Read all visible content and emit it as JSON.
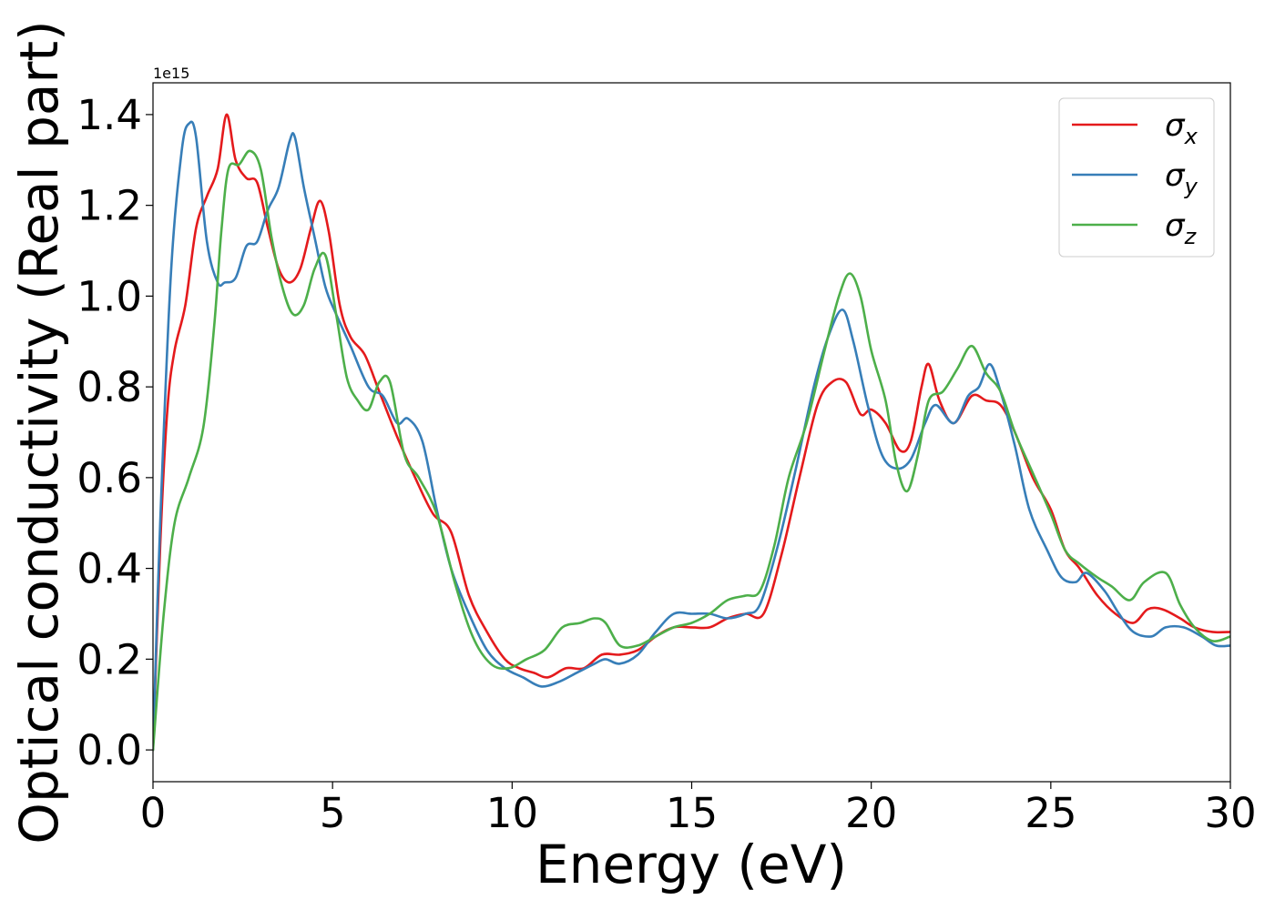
{
  "chart_data": {
    "type": "line",
    "xlabel": "Energy (eV)",
    "ylabel": "Optical conductivity (Real part)",
    "y_offset_label": "1e15",
    "xlim": [
      0,
      30
    ],
    "ylim": [
      -0.07,
      1.47
    ],
    "xticks": [
      0,
      5,
      10,
      15,
      20,
      25,
      30
    ],
    "yticks": [
      0.0,
      0.2,
      0.4,
      0.6,
      0.8,
      1.0,
      1.2,
      1.4
    ],
    "grid": false,
    "legend_position": "top-right",
    "series": [
      {
        "name": "σx",
        "symbol": "σ",
        "subscript": "x",
        "color": "#e41a1c",
        "points": [
          [
            0,
            0
          ],
          [
            0.2,
            0.45
          ],
          [
            0.4,
            0.75
          ],
          [
            0.6,
            0.88
          ],
          [
            0.9,
            0.98
          ],
          [
            1.2,
            1.15
          ],
          [
            1.5,
            1.22
          ],
          [
            1.8,
            1.28
          ],
          [
            2.05,
            1.4
          ],
          [
            2.3,
            1.3
          ],
          [
            2.6,
            1.26
          ],
          [
            2.9,
            1.25
          ],
          [
            3.2,
            1.15
          ],
          [
            3.5,
            1.06
          ],
          [
            3.8,
            1.03
          ],
          [
            4.1,
            1.06
          ],
          [
            4.4,
            1.15
          ],
          [
            4.65,
            1.21
          ],
          [
            4.9,
            1.14
          ],
          [
            5.2,
            0.98
          ],
          [
            5.5,
            0.91
          ],
          [
            5.9,
            0.87
          ],
          [
            6.3,
            0.79
          ],
          [
            6.8,
            0.69
          ],
          [
            7.3,
            0.6
          ],
          [
            7.8,
            0.52
          ],
          [
            8.3,
            0.48
          ],
          [
            8.8,
            0.34
          ],
          [
            9.3,
            0.26
          ],
          [
            9.8,
            0.2
          ],
          [
            10.2,
            0.18
          ],
          [
            10.6,
            0.17
          ],
          [
            11.0,
            0.16
          ],
          [
            11.5,
            0.18
          ],
          [
            12.0,
            0.18
          ],
          [
            12.5,
            0.21
          ],
          [
            13.0,
            0.21
          ],
          [
            13.5,
            0.22
          ],
          [
            14.0,
            0.25
          ],
          [
            14.5,
            0.27
          ],
          [
            15.0,
            0.27
          ],
          [
            15.5,
            0.27
          ],
          [
            16.0,
            0.29
          ],
          [
            16.5,
            0.3
          ],
          [
            17.0,
            0.3
          ],
          [
            17.5,
            0.43
          ],
          [
            18.0,
            0.6
          ],
          [
            18.5,
            0.76
          ],
          [
            18.9,
            0.81
          ],
          [
            19.3,
            0.81
          ],
          [
            19.7,
            0.74
          ],
          [
            20.0,
            0.75
          ],
          [
            20.4,
            0.72
          ],
          [
            20.8,
            0.66
          ],
          [
            21.1,
            0.68
          ],
          [
            21.4,
            0.8
          ],
          [
            21.6,
            0.85
          ],
          [
            21.9,
            0.77
          ],
          [
            22.3,
            0.72
          ],
          [
            22.8,
            0.78
          ],
          [
            23.2,
            0.77
          ],
          [
            23.6,
            0.76
          ],
          [
            24.0,
            0.7
          ],
          [
            24.5,
            0.6
          ],
          [
            25.0,
            0.53
          ],
          [
            25.4,
            0.44
          ],
          [
            25.8,
            0.4
          ],
          [
            26.3,
            0.34
          ],
          [
            26.8,
            0.3
          ],
          [
            27.3,
            0.28
          ],
          [
            27.7,
            0.31
          ],
          [
            28.1,
            0.31
          ],
          [
            28.6,
            0.29
          ],
          [
            29.0,
            0.27
          ],
          [
            29.5,
            0.26
          ],
          [
            30.0,
            0.26
          ]
        ]
      },
      {
        "name": "σy",
        "symbol": "σ",
        "subscript": "y",
        "color": "#377eb8",
        "points": [
          [
            0,
            0
          ],
          [
            0.2,
            0.5
          ],
          [
            0.5,
            1.05
          ],
          [
            0.8,
            1.32
          ],
          [
            1.0,
            1.38
          ],
          [
            1.2,
            1.35
          ],
          [
            1.5,
            1.12
          ],
          [
            1.8,
            1.03
          ],
          [
            2.0,
            1.03
          ],
          [
            2.3,
            1.04
          ],
          [
            2.6,
            1.11
          ],
          [
            2.9,
            1.12
          ],
          [
            3.2,
            1.19
          ],
          [
            3.5,
            1.24
          ],
          [
            3.8,
            1.34
          ],
          [
            3.95,
            1.35
          ],
          [
            4.2,
            1.24
          ],
          [
            4.5,
            1.13
          ],
          [
            4.8,
            1.02
          ],
          [
            5.1,
            0.96
          ],
          [
            5.5,
            0.89
          ],
          [
            6.0,
            0.8
          ],
          [
            6.4,
            0.78
          ],
          [
            6.8,
            0.72
          ],
          [
            7.1,
            0.73
          ],
          [
            7.5,
            0.68
          ],
          [
            7.9,
            0.53
          ],
          [
            8.3,
            0.4
          ],
          [
            8.8,
            0.3
          ],
          [
            9.3,
            0.22
          ],
          [
            9.8,
            0.18
          ],
          [
            10.3,
            0.16
          ],
          [
            10.8,
            0.14
          ],
          [
            11.3,
            0.15
          ],
          [
            11.8,
            0.17
          ],
          [
            12.3,
            0.19
          ],
          [
            12.6,
            0.2
          ],
          [
            13.0,
            0.19
          ],
          [
            13.5,
            0.21
          ],
          [
            14.0,
            0.26
          ],
          [
            14.5,
            0.3
          ],
          [
            15.0,
            0.3
          ],
          [
            15.5,
            0.3
          ],
          [
            16.0,
            0.29
          ],
          [
            16.5,
            0.3
          ],
          [
            16.9,
            0.32
          ],
          [
            17.4,
            0.45
          ],
          [
            17.9,
            0.62
          ],
          [
            18.4,
            0.8
          ],
          [
            18.8,
            0.91
          ],
          [
            19.2,
            0.97
          ],
          [
            19.5,
            0.9
          ],
          [
            19.9,
            0.76
          ],
          [
            20.3,
            0.65
          ],
          [
            20.7,
            0.62
          ],
          [
            21.1,
            0.64
          ],
          [
            21.5,
            0.72
          ],
          [
            21.8,
            0.76
          ],
          [
            22.3,
            0.72
          ],
          [
            22.7,
            0.78
          ],
          [
            23.0,
            0.8
          ],
          [
            23.3,
            0.85
          ],
          [
            23.6,
            0.79
          ],
          [
            24.0,
            0.67
          ],
          [
            24.4,
            0.53
          ],
          [
            24.9,
            0.44
          ],
          [
            25.3,
            0.38
          ],
          [
            25.7,
            0.37
          ],
          [
            26.0,
            0.39
          ],
          [
            26.5,
            0.35
          ],
          [
            26.9,
            0.3
          ],
          [
            27.3,
            0.26
          ],
          [
            27.8,
            0.25
          ],
          [
            28.2,
            0.27
          ],
          [
            28.7,
            0.27
          ],
          [
            29.2,
            0.25
          ],
          [
            29.6,
            0.23
          ],
          [
            30.0,
            0.23
          ]
        ]
      },
      {
        "name": "σz",
        "symbol": "σ",
        "subscript": "z",
        "color": "#4daf4a",
        "points": [
          [
            0,
            0
          ],
          [
            0.3,
            0.3
          ],
          [
            0.6,
            0.5
          ],
          [
            1.0,
            0.6
          ],
          [
            1.4,
            0.71
          ],
          [
            1.7,
            0.93
          ],
          [
            1.9,
            1.14
          ],
          [
            2.1,
            1.28
          ],
          [
            2.4,
            1.29
          ],
          [
            2.7,
            1.32
          ],
          [
            3.0,
            1.28
          ],
          [
            3.3,
            1.13
          ],
          [
            3.6,
            1.02
          ],
          [
            3.9,
            0.96
          ],
          [
            4.2,
            0.98
          ],
          [
            4.5,
            1.06
          ],
          [
            4.8,
            1.09
          ],
          [
            5.1,
            0.96
          ],
          [
            5.4,
            0.82
          ],
          [
            5.7,
            0.77
          ],
          [
            6.0,
            0.75
          ],
          [
            6.3,
            0.81
          ],
          [
            6.6,
            0.81
          ],
          [
            7.0,
            0.65
          ],
          [
            7.4,
            0.6
          ],
          [
            7.9,
            0.52
          ],
          [
            8.4,
            0.37
          ],
          [
            8.9,
            0.25
          ],
          [
            9.4,
            0.19
          ],
          [
            9.9,
            0.18
          ],
          [
            10.4,
            0.2
          ],
          [
            10.9,
            0.22
          ],
          [
            11.4,
            0.27
          ],
          [
            11.9,
            0.28
          ],
          [
            12.3,
            0.29
          ],
          [
            12.6,
            0.28
          ],
          [
            13.0,
            0.23
          ],
          [
            13.5,
            0.23
          ],
          [
            14.0,
            0.25
          ],
          [
            14.5,
            0.27
          ],
          [
            15.0,
            0.28
          ],
          [
            15.5,
            0.3
          ],
          [
            16.0,
            0.33
          ],
          [
            16.5,
            0.34
          ],
          [
            16.9,
            0.35
          ],
          [
            17.3,
            0.45
          ],
          [
            17.7,
            0.6
          ],
          [
            18.2,
            0.72
          ],
          [
            18.7,
            0.88
          ],
          [
            19.1,
            1.0
          ],
          [
            19.4,
            1.05
          ],
          [
            19.7,
            1.0
          ],
          [
            20.0,
            0.88
          ],
          [
            20.4,
            0.77
          ],
          [
            20.7,
            0.63
          ],
          [
            21.0,
            0.57
          ],
          [
            21.3,
            0.65
          ],
          [
            21.6,
            0.77
          ],
          [
            22.0,
            0.79
          ],
          [
            22.4,
            0.84
          ],
          [
            22.8,
            0.89
          ],
          [
            23.2,
            0.83
          ],
          [
            23.6,
            0.79
          ],
          [
            24.0,
            0.7
          ],
          [
            24.5,
            0.61
          ],
          [
            25.0,
            0.52
          ],
          [
            25.4,
            0.44
          ],
          [
            25.8,
            0.41
          ],
          [
            26.3,
            0.38
          ],
          [
            26.7,
            0.36
          ],
          [
            27.2,
            0.33
          ],
          [
            27.6,
            0.37
          ],
          [
            28.2,
            0.39
          ],
          [
            28.6,
            0.32
          ],
          [
            29.0,
            0.27
          ],
          [
            29.5,
            0.24
          ],
          [
            30.0,
            0.25
          ]
        ]
      }
    ]
  }
}
